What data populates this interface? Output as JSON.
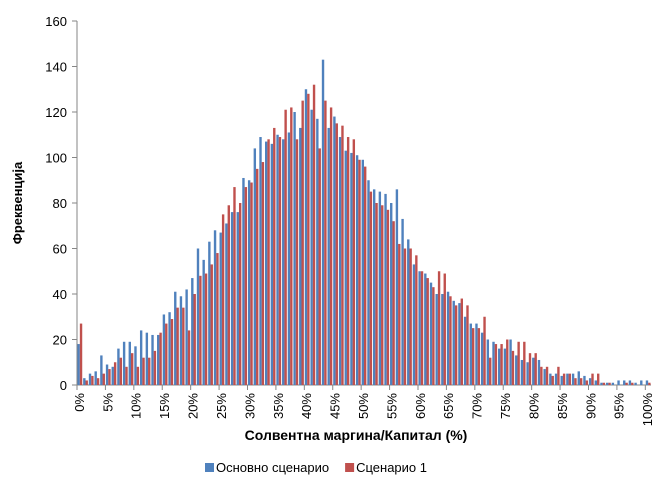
{
  "chart_data": {
    "type": "bar",
    "x_label": "Солвентна маргина/Капитал  (%)",
    "y_label": "Фреквенција",
    "categories": [
      "0%",
      null,
      null,
      null,
      null,
      "5%",
      null,
      null,
      null,
      null,
      "10%",
      null,
      null,
      null,
      null,
      "15%",
      null,
      null,
      null,
      null,
      "20%",
      null,
      null,
      null,
      null,
      "25%",
      null,
      null,
      null,
      null,
      "30%",
      null,
      null,
      null,
      null,
      "35%",
      null,
      null,
      null,
      null,
      "40%",
      null,
      null,
      null,
      null,
      "45%",
      null,
      null,
      null,
      null,
      "50%",
      null,
      null,
      null,
      null,
      "55%",
      null,
      null,
      null,
      null,
      "60%",
      null,
      null,
      null,
      null,
      "65%",
      null,
      null,
      null,
      null,
      "70%",
      null,
      null,
      null,
      null,
      "75%",
      null,
      null,
      null,
      null,
      "80%",
      null,
      null,
      null,
      null,
      "85%",
      null,
      null,
      null,
      null,
      "90%",
      null,
      null,
      null,
      null,
      "95%",
      null,
      null,
      null,
      null,
      "100%"
    ],
    "series": [
      {
        "name": "Основно сценарио",
        "color": "#4f81bd",
        "values": [
          18,
          3,
          5,
          6,
          13,
          9,
          8,
          16,
          19,
          19,
          17,
          24,
          23,
          22,
          22,
          31,
          32,
          41,
          39,
          42,
          47,
          60,
          55,
          63,
          68,
          67,
          71,
          76,
          76,
          91,
          90,
          104,
          109,
          107,
          106,
          110,
          108,
          111,
          120,
          113,
          130,
          121,
          117,
          143,
          113,
          118,
          109,
          103,
          102,
          101,
          99,
          90,
          86,
          85,
          84,
          80,
          86,
          73,
          64,
          53,
          50,
          49,
          45,
          40,
          40,
          41,
          37,
          36,
          30,
          27,
          27,
          23,
          20,
          19,
          16,
          16,
          20,
          13,
          11,
          10,
          12,
          11,
          7,
          5,
          5,
          4,
          5,
          5,
          6,
          4,
          3,
          2,
          1,
          1,
          1,
          2,
          2,
          2,
          1,
          2,
          2
        ]
      },
      {
        "name": "Сценарио 1",
        "color": "#c0504d",
        "values": [
          27,
          2,
          4,
          3,
          5,
          7,
          10,
          12,
          8,
          14,
          8,
          12,
          12,
          15,
          23,
          27,
          29,
          34,
          34,
          24,
          40,
          48,
          49,
          53,
          58,
          75,
          79,
          87,
          80,
          87,
          89,
          95,
          98,
          108,
          113,
          109,
          121,
          122,
          108,
          125,
          128,
          132,
          104,
          125,
          122,
          115,
          114,
          109,
          108,
          99,
          96,
          85,
          80,
          79,
          77,
          72,
          62,
          60,
          60,
          57,
          50,
          47,
          43,
          50,
          49,
          39,
          35,
          38,
          35,
          25,
          25,
          30,
          12,
          18,
          18,
          20,
          15,
          19,
          19,
          14,
          14,
          8,
          8,
          4,
          8,
          5,
          5,
          3,
          3,
          2,
          5,
          5,
          1,
          1,
          0,
          0,
          1,
          1,
          0,
          0,
          1
        ]
      }
    ],
    "ylim": [
      0,
      160
    ],
    "yticks": [
      0,
      20,
      40,
      60,
      80,
      100,
      120,
      140,
      160
    ],
    "grid": false,
    "legend": "bottom"
  }
}
